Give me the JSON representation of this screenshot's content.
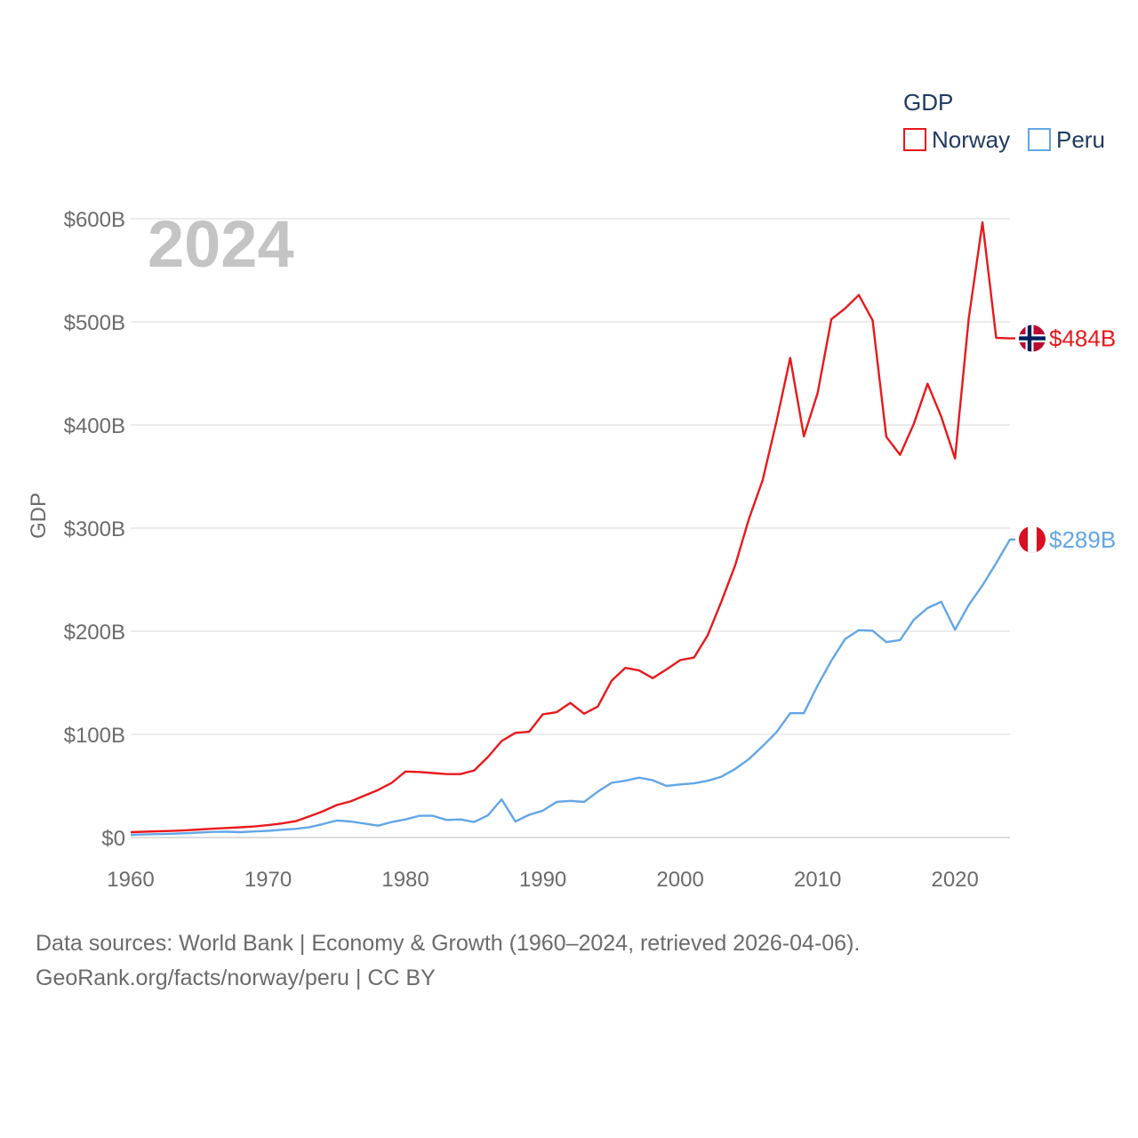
{
  "chart_data": {
    "type": "line",
    "title": "",
    "year_label": "2024",
    "xlabel": "",
    "ylabel": "GDP",
    "legend_title": "GDP",
    "legend_position": "top-right",
    "xlim": [
      1960,
      2024
    ],
    "ylim": [
      0,
      600
    ],
    "x_ticks": [
      1960,
      1970,
      1980,
      1990,
      2000,
      2010,
      2020
    ],
    "y_ticks": [
      0,
      100,
      200,
      300,
      400,
      500,
      600
    ],
    "y_tick_labels": [
      "$0",
      "$100B",
      "$200B",
      "$300B",
      "$400B",
      "$500B",
      "$600B"
    ],
    "grid": true,
    "x": [
      1960,
      1961,
      1962,
      1963,
      1964,
      1965,
      1966,
      1967,
      1968,
      1969,
      1970,
      1971,
      1972,
      1973,
      1974,
      1975,
      1976,
      1977,
      1978,
      1979,
      1980,
      1981,
      1982,
      1983,
      1984,
      1985,
      1986,
      1987,
      1988,
      1989,
      1990,
      1991,
      1992,
      1993,
      1994,
      1995,
      1996,
      1997,
      1998,
      1999,
      2000,
      2001,
      2002,
      2003,
      2004,
      2005,
      2006,
      2007,
      2008,
      2009,
      2010,
      2011,
      2012,
      2013,
      2014,
      2015,
      2016,
      2017,
      2018,
      2019,
      2020,
      2021,
      2022,
      2023,
      2024
    ],
    "series": [
      {
        "name": "Norway",
        "color": "#e8191c",
        "end_label": "$484B",
        "flag": "norway-flag",
        "values": [
          5.2,
          5.6,
          6.0,
          6.4,
          7.0,
          7.8,
          8.5,
          9.2,
          9.9,
          10.7,
          12.0,
          13.6,
          15.8,
          20.5,
          25.4,
          31.5,
          35.0,
          40.5,
          46.0,
          53.0,
          64.0,
          63.5,
          62.5,
          61.5,
          61.5,
          65.0,
          78.0,
          93.5,
          101.5,
          102.5,
          119.5,
          121.5,
          130.5,
          120.0,
          127.0,
          152.0,
          164.5,
          162.0,
          154.5,
          163.0,
          172.0,
          174.5,
          196.0,
          229.0,
          264.0,
          309.0,
          346.5,
          403.0,
          465.0,
          389.0,
          431.0,
          502.5,
          513.0,
          526.0,
          501.5,
          388.5,
          371.0,
          401.0,
          440.0,
          408.0,
          367.5,
          503.0,
          596.5,
          484.5,
          484.0
        ]
      },
      {
        "name": "Peru",
        "color": "#62a6e6",
        "end_label": "$289B",
        "flag": "peru-flag",
        "values": [
          2.6,
          2.9,
          3.3,
          3.6,
          4.1,
          4.8,
          5.4,
          5.6,
          5.2,
          5.9,
          6.5,
          7.5,
          8.4,
          10.0,
          13.0,
          16.5,
          15.5,
          13.5,
          11.5,
          15.0,
          17.5,
          21.0,
          21.0,
          17.0,
          17.5,
          15.0,
          21.5,
          37.0,
          15.5,
          22.0,
          26.0,
          34.5,
          35.5,
          34.5,
          44.5,
          53.0,
          55.0,
          58.0,
          55.5,
          50.0,
          51.5,
          52.5,
          55.0,
          59.0,
          66.5,
          76.0,
          88.5,
          102.0,
          120.5,
          120.5,
          147.5,
          171.5,
          192.5,
          201.0,
          200.5,
          189.5,
          191.5,
          211.0,
          222.5,
          228.5,
          201.5,
          225.5,
          244.5,
          266.0,
          289.0
        ]
      }
    ]
  },
  "source": {
    "line1": "Data sources: World Bank | Economy & Growth (1960–2024, retrieved 2026-04-06).",
    "line2": "GeoRank.org/facts/norway/peru | CC BY"
  }
}
